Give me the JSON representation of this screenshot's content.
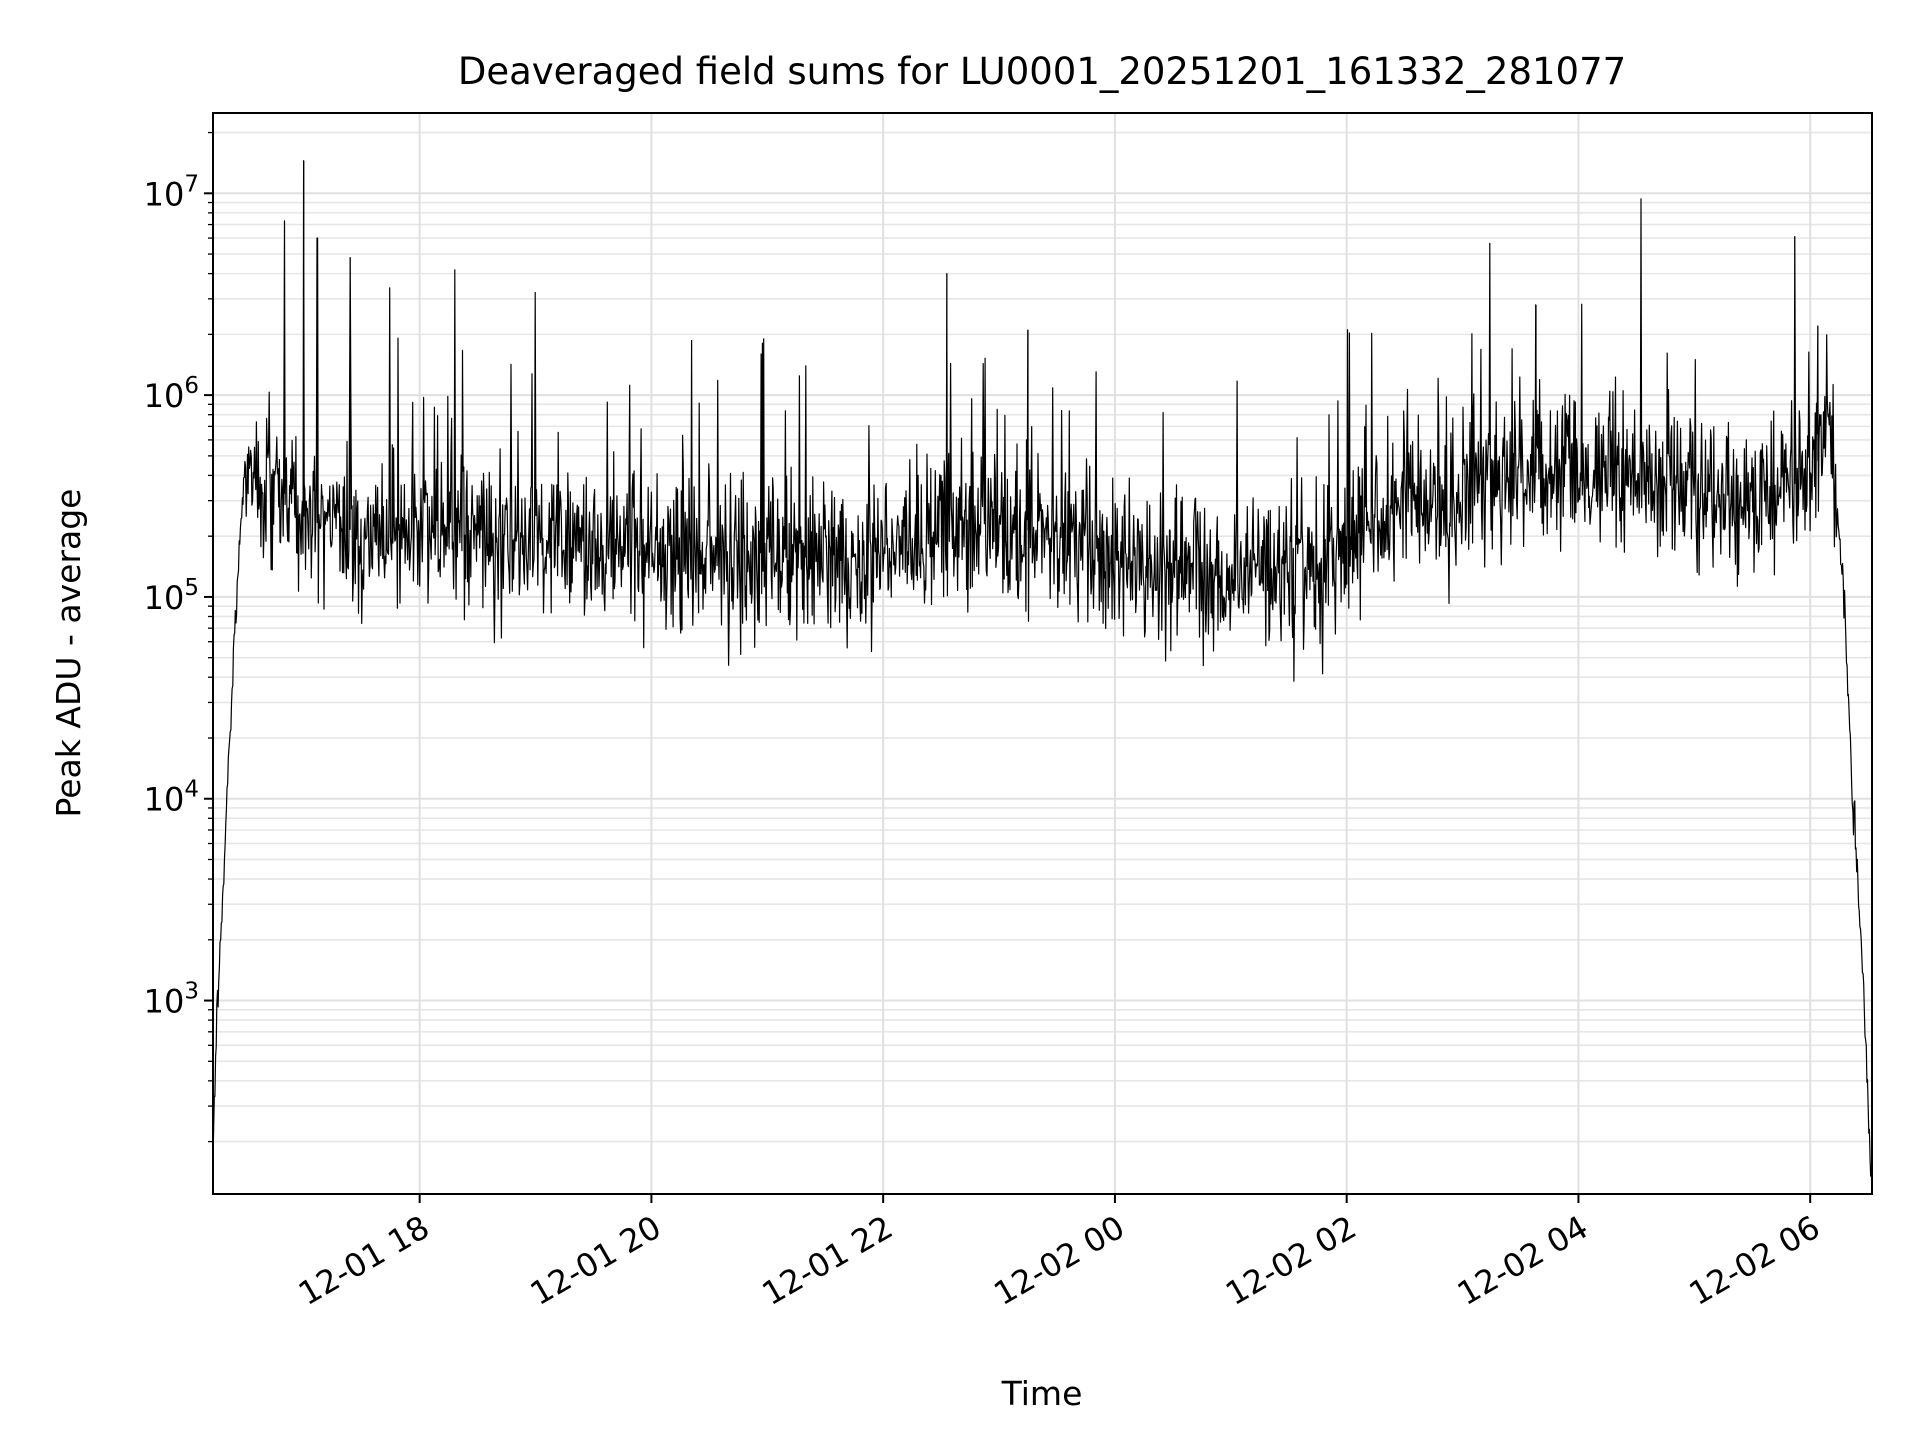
{
  "chart_data": {
    "type": "line",
    "title": "Deaveraged field sums for LU0001_20251201_161332_281077",
    "xlabel": "Time",
    "ylabel": "Peak ADU - average",
    "yscale": "log",
    "ylim": [
      110,
      25000000
    ],
    "xlim": [
      "2025-12-01 16:13",
      "2025-12-02 06:32"
    ],
    "grid": true,
    "x_ticks": [
      {
        "time": "2025-12-01 18:00",
        "label": "12-01 18"
      },
      {
        "time": "2025-12-01 20:00",
        "label": "12-01 20"
      },
      {
        "time": "2025-12-01 22:00",
        "label": "12-01 22"
      },
      {
        "time": "2025-12-02 00:00",
        "label": "12-02 00"
      },
      {
        "time": "2025-12-02 02:00",
        "label": "12-02 02"
      },
      {
        "time": "2025-12-02 04:00",
        "label": "12-02 04"
      },
      {
        "time": "2025-12-02 06:00",
        "label": "12-02 06"
      }
    ],
    "y_ticks": [
      {
        "value": 1000,
        "base": "10",
        "exp": "3"
      },
      {
        "value": 10000,
        "base": "10",
        "exp": "4"
      },
      {
        "value": 100000,
        "base": "10",
        "exp": "5"
      },
      {
        "value": 1000000,
        "base": "10",
        "exp": "6"
      },
      {
        "value": 10000000,
        "base": "10",
        "exp": "7"
      }
    ],
    "series": [
      {
        "color": "#000000",
        "x": [
          "2025-12-01 16:13",
          "2025-12-01 16:15",
          "2025-12-01 16:17",
          "2025-12-01 16:19",
          "2025-12-01 16:21",
          "2025-12-01 16:24",
          "2025-12-01 16:27",
          "2025-12-01 16:30",
          "2025-12-01 16:35",
          "2025-12-01 16:40",
          "2025-12-01 16:46",
          "2025-12-01 16:52",
          "2025-12-01 17:00",
          "2025-12-01 17:08",
          "2025-12-01 17:18",
          "2025-12-01 17:30",
          "2025-12-01 17:45",
          "2025-12-01 18:00",
          "2025-12-01 18:30",
          "2025-12-01 19:00",
          "2025-12-01 19:30",
          "2025-12-01 20:00",
          "2025-12-01 20:30",
          "2025-12-01 21:00",
          "2025-12-01 21:30",
          "2025-12-01 22:00",
          "2025-12-01 22:30",
          "2025-12-01 23:00",
          "2025-12-01 23:30",
          "2025-12-02 00:00",
          "2025-12-02 00:30",
          "2025-12-02 01:00",
          "2025-12-02 01:30",
          "2025-12-02 02:00",
          "2025-12-02 02:30",
          "2025-12-02 03:00",
          "2025-12-02 03:30",
          "2025-12-02 04:00",
          "2025-12-02 04:30",
          "2025-12-02 05:00",
          "2025-12-02 05:30",
          "2025-12-02 06:00",
          "2025-12-02 06:05",
          "2025-12-02 06:10",
          "2025-12-02 06:14",
          "2025-12-02 06:18",
          "2025-12-02 06:22",
          "2025-12-02 06:26",
          "2025-12-02 06:29",
          "2025-12-02 06:31"
        ],
        "y": [
          150,
          900,
          2000,
          5000,
          15000,
          60000,
          200000,
          450000,
          380000,
          320000,
          380000,
          300000,
          250000,
          230000,
          220000,
          210000,
          200000,
          210000,
          200000,
          180000,
          170000,
          175000,
          165000,
          160000,
          150000,
          150000,
          210000,
          230000,
          200000,
          150000,
          140000,
          130000,
          140000,
          180000,
          300000,
          350000,
          400000,
          450000,
          380000,
          330000,
          320000,
          380000,
          500000,
          900000,
          300000,
          80000,
          10000,
          2500,
          500,
          150
        ],
        "spike_x": [
          "2025-12-01 16:50",
          "2025-12-01 17:00",
          "2025-12-01 17:07",
          "2025-12-01 17:24",
          "2025-12-01 22:33",
          "2025-12-01 23:15",
          "2025-12-02 03:38",
          "2025-12-02 05:52",
          "2025-12-02 06:04"
        ],
        "spike_y": [
          7300000,
          14500000,
          6000000,
          4800000,
          4000000,
          2100000,
          2800000,
          6100000,
          2200000
        ]
      }
    ]
  }
}
